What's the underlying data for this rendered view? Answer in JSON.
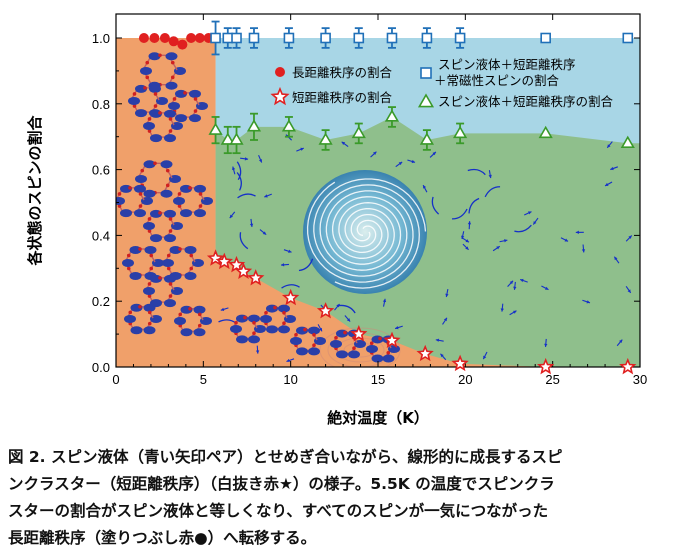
{
  "chart_data": {
    "type": "scatter",
    "xlabel": "絶対温度（K）",
    "ylabel": "各状態のスピンの割合",
    "xlim": [
      0,
      30
    ],
    "ylim": [
      0,
      1.05
    ],
    "x_ticks": [
      "0",
      "5",
      "10",
      "15",
      "20",
      "25",
      "30"
    ],
    "y_ticks": [
      "0.0",
      "0.2",
      "0.4",
      "0.6",
      "0.8",
      "1.0"
    ],
    "legend_position": "top-right",
    "colors": {
      "long_range_region": "#f0a06a",
      "spin_liquid_region": "#8fbf8c",
      "paramagnetic_region": "#a8d6e6",
      "long_range_marker": "#e02020",
      "short_range_marker": "#e02020",
      "sl_lro_marker": "#3a9a2a",
      "sl_lro_para_marker": "#2070b8"
    },
    "series": [
      {
        "name": "長距離秩序の割合",
        "marker": "filled-circle",
        "x": [
          1.6,
          2.2,
          2.8,
          3.3,
          3.8,
          4.3,
          4.8,
          5.3
        ],
        "y": [
          1.0,
          1.0,
          1.0,
          0.99,
          0.98,
          1.0,
          1.0,
          1.0
        ]
      },
      {
        "name": "短距離秩序の割合",
        "marker": "open-star",
        "x": [
          5.7,
          6.2,
          6.9,
          7.3,
          8.0,
          10.0,
          12.0,
          13.9,
          15.8,
          17.7,
          19.7,
          24.6,
          29.3
        ],
        "y": [
          0.33,
          0.32,
          0.31,
          0.29,
          0.27,
          0.21,
          0.17,
          0.1,
          0.08,
          0.04,
          0.01,
          0.0,
          0.0
        ]
      },
      {
        "name": "スピン液体＋短距離秩序の割合",
        "marker": "open-triangle",
        "x": [
          5.7,
          6.4,
          6.9,
          7.9,
          9.9,
          12.0,
          13.9,
          15.8,
          17.8,
          19.7,
          24.6,
          29.3
        ],
        "y": [
          0.72,
          0.69,
          0.69,
          0.73,
          0.73,
          0.69,
          0.71,
          0.76,
          0.69,
          0.71,
          0.71,
          0.68
        ],
        "err": [
          0.04,
          0.04,
          0.04,
          0.04,
          0.03,
          0.03,
          0.03,
          0.03,
          0.03,
          0.03,
          0.0,
          0.0
        ]
      },
      {
        "name": "スピン液体＋短距離秩序\n＋常磁性スピンの割合",
        "marker": "open-square",
        "x": [
          5.7,
          6.4,
          6.9,
          7.9,
          9.9,
          12.0,
          13.9,
          15.8,
          17.8,
          19.7,
          24.6,
          29.3
        ],
        "y": [
          1.0,
          1.0,
          1.0,
          1.0,
          1.0,
          1.0,
          1.0,
          1.0,
          1.0,
          1.0,
          1.0,
          1.0
        ],
        "err": [
          0.05,
          0.03,
          0.03,
          0.03,
          0.03,
          0.03,
          0.03,
          0.03,
          0.03,
          0.03,
          0.0,
          0.0
        ]
      }
    ]
  },
  "caption": {
    "lines": [
      "図 2. スピン液体（青い矢印ペア）とせめぎ合いながら、線形的に成長するスピ",
      "ンクラスター（短距離秩序）（白抜き赤★）の様子。5.5K の温度でスピンクラ",
      "スターの割合がスピン液体と等しくなり、すべてのスピンが一気につながった",
      "長距離秩序（塗りつぶし赤●）へ転移する。"
    ]
  }
}
